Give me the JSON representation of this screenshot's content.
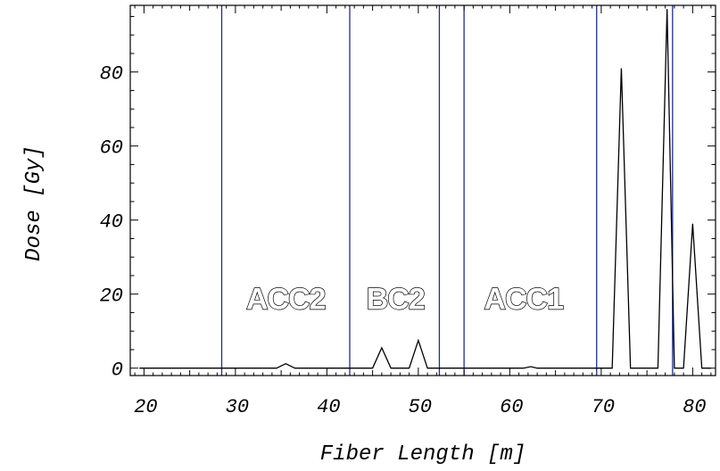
{
  "chart_data": {
    "type": "line",
    "title": "",
    "xlabel": "Fiber Length [m]",
    "ylabel": "Dose [Gy]",
    "xlim": [
      18.5,
      82.5
    ],
    "ylim": [
      -2,
      98
    ],
    "xticks": [
      20,
      30,
      40,
      50,
      60,
      70,
      80
    ],
    "yticks": [
      0,
      20,
      40,
      60,
      80
    ],
    "grid": false,
    "colors": {
      "line": "#000000",
      "boundaries": "#1f2d8a",
      "frame": "#000000"
    },
    "vertical_lines": [
      28.5,
      42.5,
      52.3,
      55.0,
      69.5,
      77.8
    ],
    "region_labels": [
      {
        "text": "ACC2",
        "x": 35.5,
        "y": 16
      },
      {
        "text": "BC2",
        "x": 47.5,
        "y": 16
      },
      {
        "text": "ACC1",
        "x": 61.5,
        "y": 16
      }
    ],
    "series": [
      {
        "x": [
          19.5,
          34.5,
          35.5,
          36.5,
          45.0,
          46.0,
          47.0,
          49.0,
          50.0,
          51.0,
          61.5,
          62.3,
          63.0,
          71.2,
          72.2,
          73.2,
          76.2,
          77.2,
          78.0,
          79.0,
          80.0,
          81.0,
          82.0
        ],
        "y": [
          0,
          0,
          1.2,
          0,
          0,
          5.5,
          0,
          0,
          7.5,
          0,
          0,
          0.4,
          0,
          0,
          81,
          0,
          0,
          97,
          0,
          0,
          39,
          0,
          0
        ]
      }
    ]
  }
}
